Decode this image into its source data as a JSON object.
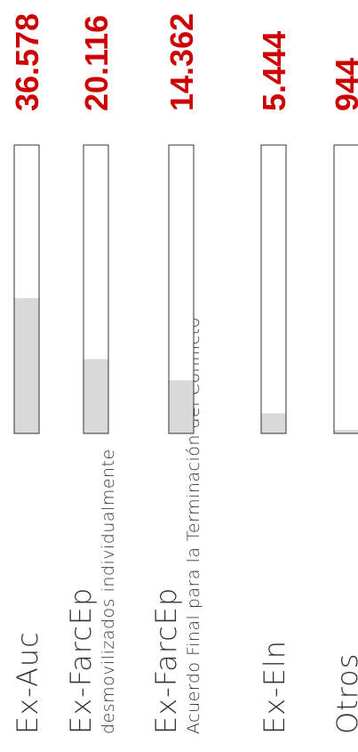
{
  "chart_data": {
    "type": "bar",
    "orientation": "horizontal",
    "categories": [
      {
        "label": "Ex-Auc",
        "sublabel": ""
      },
      {
        "label": "Ex-FarcEp",
        "sublabel": "desmovilizados individualmente"
      },
      {
        "label": "Ex-FarcEp",
        "sublabel": "Acuerdo Final para la Terminación del Conflicto"
      },
      {
        "label": "Ex-Eln",
        "sublabel": ""
      },
      {
        "label": "Otros",
        "sublabel": ""
      }
    ],
    "values": [
      36578,
      20116,
      14362,
      5444,
      944
    ],
    "value_labels": [
      "36.578",
      "20.116",
      "14.362",
      "5.444",
      "944"
    ],
    "xlim": [
      0,
      78000
    ],
    "colors": {
      "value_text": "#cc0000",
      "bar_fill": "#d9d9d9",
      "bar_outline": "#333333",
      "label_text": "#333333"
    }
  }
}
